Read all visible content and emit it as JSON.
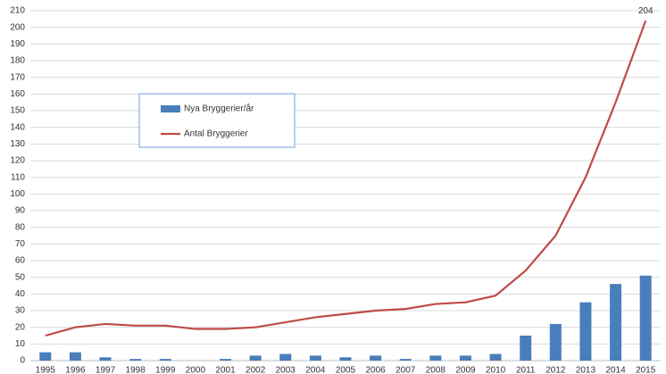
{
  "chart_data": {
    "type": "bar-line",
    "categories": [
      "1995",
      "1996",
      "1997",
      "1998",
      "1999",
      "2000",
      "2001",
      "2002",
      "2003",
      "2004",
      "2005",
      "2006",
      "2007",
      "2008",
      "2009",
      "2010",
      "2011",
      "2012",
      "2013",
      "2014",
      "2015"
    ],
    "series": [
      {
        "name": "Nya Bryggerier/år",
        "type": "bar",
        "color": "#4a7ebb",
        "values": [
          5,
          5,
          2,
          1,
          1,
          0,
          1,
          3,
          4,
          3,
          2,
          3,
          1,
          3,
          3,
          4,
          15,
          22,
          35,
          46,
          51
        ]
      },
      {
        "name": "Antal Bryggerier",
        "type": "line",
        "color": "#be4b48",
        "values": [
          15,
          20,
          22,
          21,
          21,
          19,
          19,
          20,
          23,
          26,
          28,
          30,
          31,
          34,
          35,
          39,
          54,
          75,
          110,
          155,
          204
        ],
        "value_labels": [
          null,
          null,
          null,
          null,
          null,
          null,
          null,
          null,
          null,
          null,
          null,
          null,
          null,
          null,
          null,
          null,
          null,
          null,
          null,
          null,
          "204"
        ]
      }
    ],
    "ylim": [
      0,
      210
    ],
    "yticks": [
      0,
      10,
      20,
      30,
      40,
      50,
      60,
      70,
      80,
      90,
      100,
      110,
      120,
      130,
      140,
      150,
      160,
      170,
      180,
      190,
      200,
      210
    ],
    "grid": true,
    "legend": "upper-left"
  }
}
